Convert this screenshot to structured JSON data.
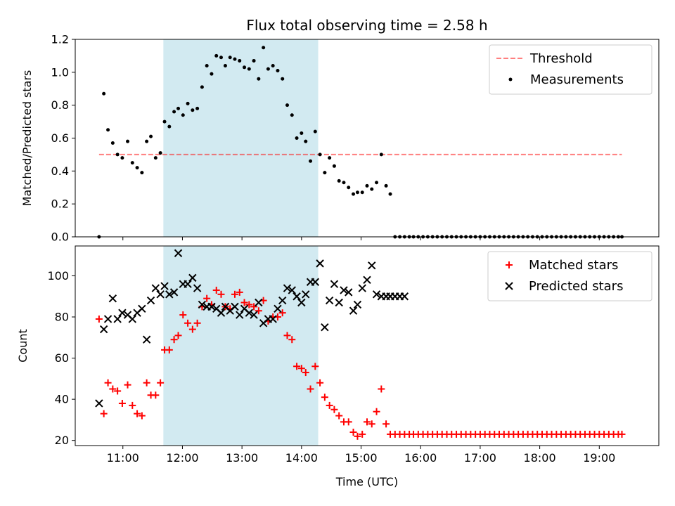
{
  "chart_data": [
    {
      "type": "scatter",
      "title": "Flux total observing time = 2.58 h",
      "xlabel": "",
      "ylabel": "Matched/Predicted stars",
      "xlim": [
        10.2,
        20.0
      ],
      "ylim": [
        0,
        1.2
      ],
      "yticks": [
        0.0,
        0.2,
        0.4,
        0.6,
        0.8,
        1.0,
        1.2
      ],
      "ytick_labels": [
        "0.0",
        "0.2",
        "0.4",
        "0.6",
        "0.8",
        "1.0",
        "1.2"
      ],
      "shaded_interval": [
        11.68,
        14.28
      ],
      "shade_color": "#add8e6",
      "legend": {
        "position": "top-right",
        "entries": [
          "Threshold",
          "Measurements"
        ]
      },
      "threshold": {
        "name": "Threshold",
        "y": 0.5,
        "x": [
          10.6,
          19.38
        ],
        "color": "#ff0000"
      },
      "series": [
        {
          "name": "Measurements",
          "color": "#000000",
          "x": [
            10.6,
            10.68,
            10.75,
            10.83,
            10.91,
            10.99,
            11.08,
            11.16,
            11.24,
            11.32,
            11.4,
            11.47,
            11.55,
            11.63,
            11.7,
            11.78,
            11.86,
            11.93,
            12.01,
            12.09,
            12.17,
            12.25,
            12.33,
            12.41,
            12.49,
            12.57,
            12.65,
            12.72,
            12.8,
            12.88,
            12.96,
            13.04,
            13.12,
            13.2,
            13.28,
            13.36,
            13.44,
            13.52,
            13.6,
            13.68,
            13.76,
            13.84,
            13.92,
            14.0,
            14.07,
            14.15,
            14.23,
            14.31,
            14.39,
            14.47,
            14.55,
            14.63,
            14.71,
            14.79,
            14.87,
            14.94,
            15.02,
            15.1,
            15.18,
            15.26,
            15.34,
            15.42,
            15.49,
            15.57,
            15.65,
            15.73,
            15.81,
            15.88,
            15.96,
            16.04,
            16.12,
            16.2,
            16.28,
            16.36,
            16.44,
            16.52,
            16.6,
            16.68,
            16.76,
            16.84,
            16.92,
            17.0,
            17.08,
            17.16,
            17.24,
            17.32,
            17.4,
            17.48,
            17.56,
            17.64,
            17.72,
            17.8,
            17.88,
            17.96,
            18.04,
            18.12,
            18.2,
            18.28,
            18.36,
            18.44,
            18.52,
            18.6,
            18.68,
            18.76,
            18.84,
            18.92,
            19.0,
            19.08,
            19.16,
            19.24,
            19.32,
            19.38
          ],
          "y": [
            0.0,
            0.87,
            0.65,
            0.57,
            0.5,
            0.48,
            0.58,
            0.45,
            0.42,
            0.39,
            0.58,
            0.61,
            0.48,
            0.51,
            0.7,
            0.67,
            0.76,
            0.78,
            0.74,
            0.81,
            0.77,
            0.78,
            0.91,
            1.04,
            0.99,
            1.1,
            1.09,
            1.04,
            1.09,
            1.08,
            1.07,
            1.03,
            1.02,
            1.07,
            0.96,
            1.15,
            1.02,
            1.04,
            1.01,
            0.96,
            0.8,
            0.74,
            0.6,
            0.63,
            0.58,
            0.46,
            0.64,
            0.5,
            0.39,
            0.48,
            0.43,
            0.34,
            0.33,
            0.3,
            0.26,
            0.27,
            0.27,
            0.31,
            0.29,
            0.33,
            0.5,
            0.31,
            0.26,
            0.0,
            0.0,
            0.0,
            0.0,
            0.0,
            0.0,
            0.0,
            0.0,
            0.0,
            0.0,
            0.0,
            0.0,
            0.0,
            0.0,
            0.0,
            0.0,
            0.0,
            0.0,
            0.0,
            0.0,
            0.0,
            0.0,
            0.0,
            0.0,
            0.0,
            0.0,
            0.0,
            0.0,
            0.0,
            0.0,
            0.0,
            0.0,
            0.0,
            0.0,
            0.0,
            0.0,
            0.0,
            0.0,
            0.0,
            0.0,
            0.0,
            0.0,
            0.0,
            0.0,
            0.0,
            0.0,
            0.0,
            0.0,
            0.0
          ]
        }
      ]
    },
    {
      "type": "scatter",
      "title": "",
      "xlabel": "Time (UTC)",
      "ylabel": "Count",
      "xlim": [
        10.2,
        20.0
      ],
      "ylim": [
        17.5,
        114.5
      ],
      "xticks": [
        11,
        12,
        13,
        14,
        15,
        16,
        17,
        18,
        19
      ],
      "xtick_labels": [
        "11:00",
        "12:00",
        "13:00",
        "14:00",
        "15:00",
        "16:00",
        "17:00",
        "18:00",
        "19:00"
      ],
      "yticks": [
        20,
        40,
        60,
        80,
        100
      ],
      "ytick_labels": [
        "20",
        "40",
        "60",
        "80",
        "100"
      ],
      "shaded_interval": [
        11.68,
        14.28
      ],
      "shade_color": "#add8e6",
      "legend": {
        "position": "top-right",
        "entries": [
          "Matched stars",
          "Predicted stars"
        ]
      },
      "series": [
        {
          "name": "Matched stars",
          "marker": "plus",
          "color": "#ff0000",
          "x": [
            10.6,
            10.68,
            10.75,
            10.83,
            10.91,
            10.99,
            11.08,
            11.16,
            11.24,
            11.32,
            11.4,
            11.47,
            11.55,
            11.63,
            11.7,
            11.78,
            11.86,
            11.93,
            12.01,
            12.09,
            12.17,
            12.25,
            12.33,
            12.41,
            12.49,
            12.57,
            12.65,
            12.72,
            12.8,
            12.88,
            12.96,
            13.04,
            13.12,
            13.2,
            13.28,
            13.36,
            13.44,
            13.52,
            13.6,
            13.68,
            13.76,
            13.84,
            13.92,
            14.0,
            14.07,
            14.15,
            14.23,
            14.31,
            14.39,
            14.47,
            14.55,
            14.63,
            14.71,
            14.79,
            14.87,
            14.94,
            15.02,
            15.1,
            15.18,
            15.26,
            15.34,
            15.42,
            15.49,
            15.57,
            15.65,
            15.73,
            15.81,
            15.88,
            15.96,
            16.04,
            16.12,
            16.2,
            16.28,
            16.36,
            16.44,
            16.52,
            16.6,
            16.68,
            16.76,
            16.84,
            16.92,
            17.0,
            17.08,
            17.16,
            17.24,
            17.32,
            17.4,
            17.48,
            17.56,
            17.64,
            17.72,
            17.8,
            17.88,
            17.96,
            18.04,
            18.12,
            18.2,
            18.28,
            18.36,
            18.44,
            18.52,
            18.6,
            18.68,
            18.76,
            18.84,
            18.92,
            19.0,
            19.08,
            19.16,
            19.24,
            19.32,
            19.38
          ],
          "y": [
            79,
            33,
            48,
            45,
            44,
            38,
            47,
            37,
            33,
            32,
            48,
            42,
            42,
            48,
            64,
            64,
            69,
            71,
            81,
            77,
            74,
            77,
            85,
            89,
            86,
            93,
            91,
            85,
            84,
            91,
            92,
            87,
            86,
            85,
            83,
            88,
            78,
            80,
            80,
            82,
            71,
            69,
            56,
            55,
            53,
            45,
            56,
            48,
            41,
            37,
            35,
            32,
            29,
            29,
            24,
            22,
            23,
            29,
            28,
            34,
            45,
            28,
            23,
            23,
            23,
            23,
            23,
            23,
            23,
            23,
            23,
            23,
            23,
            23,
            23,
            23,
            23,
            23,
            23,
            23,
            23,
            23,
            23,
            23,
            23,
            23,
            23,
            23,
            23,
            23,
            23,
            23,
            23,
            23,
            23,
            23,
            23,
            23,
            23,
            23,
            23,
            23,
            23,
            23,
            23,
            23,
            23,
            23,
            23,
            23,
            23,
            23
          ]
        },
        {
          "name": "Predicted stars",
          "marker": "x",
          "color": "#000000",
          "x": [
            10.6,
            10.68,
            10.75,
            10.83,
            10.91,
            10.99,
            11.08,
            11.16,
            11.24,
            11.32,
            11.4,
            11.47,
            11.55,
            11.63,
            11.7,
            11.78,
            11.86,
            11.93,
            12.01,
            12.09,
            12.17,
            12.25,
            12.33,
            12.41,
            12.49,
            12.57,
            12.65,
            12.72,
            12.8,
            12.88,
            12.96,
            13.04,
            13.12,
            13.2,
            13.28,
            13.36,
            13.44,
            13.52,
            13.6,
            13.68,
            13.76,
            13.84,
            13.92,
            14.0,
            14.07,
            14.15,
            14.23,
            14.31,
            14.39,
            14.47,
            14.55,
            14.63,
            14.71,
            14.79,
            14.87,
            14.94,
            15.02,
            15.1,
            15.18,
            15.26,
            15.34,
            15.42,
            15.49,
            15.57,
            15.65,
            15.73
          ],
          "y": [
            38,
            74,
            79,
            89,
            79,
            82,
            81,
            79,
            82,
            84,
            69,
            88,
            94,
            91,
            95,
            91,
            92,
            111,
            96,
            96,
            99,
            94,
            86,
            85,
            85,
            84,
            82,
            85,
            83,
            85,
            81,
            84,
            82,
            81,
            87,
            77,
            79,
            79,
            84,
            88,
            94,
            93,
            90,
            87,
            91,
            97,
            97,
            106,
            75,
            88,
            96,
            87,
            93,
            92,
            83,
            86,
            94,
            98,
            105,
            91,
            90,
            90,
            90,
            90,
            90,
            90
          ]
        }
      ]
    }
  ]
}
